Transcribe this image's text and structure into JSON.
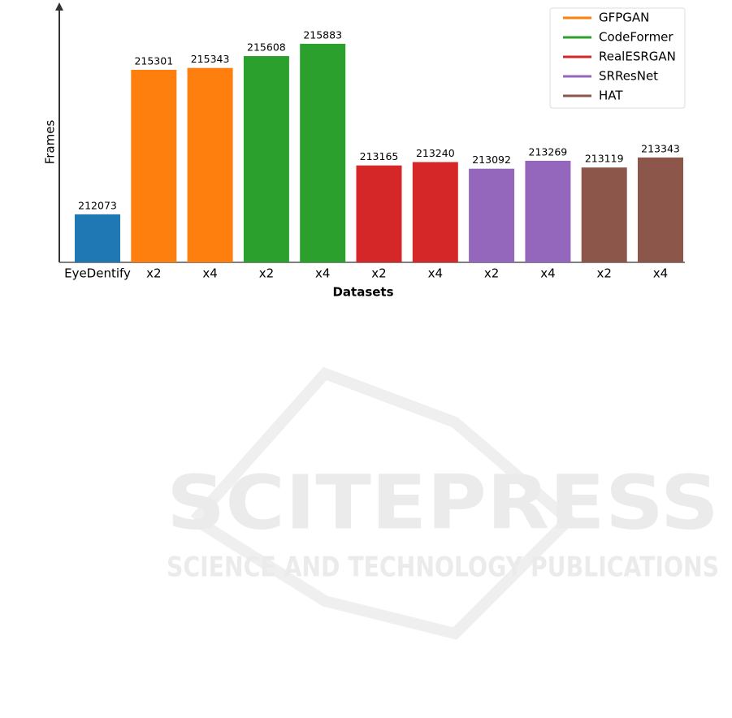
{
  "chart_data": {
    "type": "bar",
    "x_label": "Datasets",
    "y_label": "Frames",
    "categories": [
      "EyeDentify",
      "x2",
      "x4",
      "x2",
      "x4",
      "x2",
      "x4",
      "x2",
      "x4",
      "x2",
      "x4"
    ],
    "series": [
      {
        "color": "#1f77b4",
        "values": [
          212073,
          null,
          null,
          null,
          null,
          null,
          null,
          null,
          null,
          null,
          null
        ]
      },
      {
        "name": "GFPGAN",
        "color": "#ff7f0e",
        "values": [
          null,
          215301,
          215343,
          null,
          null,
          null,
          null,
          null,
          null,
          null,
          null
        ]
      },
      {
        "name": "CodeFormer",
        "color": "#2ca02c",
        "values": [
          null,
          null,
          null,
          215608,
          215883,
          null,
          null,
          null,
          null,
          null,
          null
        ]
      },
      {
        "name": "RealESRGAN",
        "color": "#d62728",
        "values": [
          null,
          null,
          null,
          null,
          null,
          213165,
          213240,
          null,
          null,
          null,
          null
        ]
      },
      {
        "name": "SRResNet",
        "color": "#9467bd",
        "values": [
          null,
          null,
          null,
          null,
          null,
          null,
          null,
          213092,
          213269,
          null,
          null
        ]
      },
      {
        "name": "HAT",
        "color": "#8c564b",
        "values": [
          null,
          null,
          null,
          null,
          null,
          null,
          null,
          null,
          null,
          213119,
          213343
        ]
      }
    ],
    "ylim": [
      211000,
      216770
    ],
    "legend": "upper right",
    "grid": false
  },
  "watermark": {
    "title": "SCITEPRESS",
    "subtitle": "SCIENCE AND TECHNOLOGY PUBLICATIONS"
  }
}
